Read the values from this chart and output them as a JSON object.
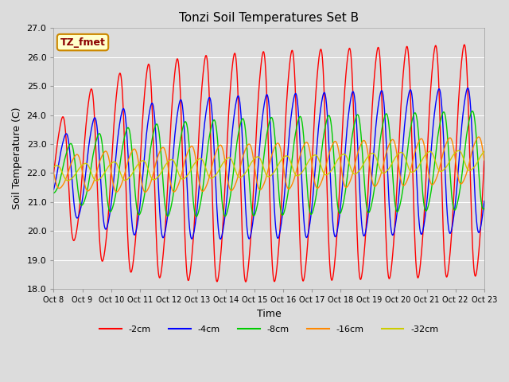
{
  "title": "Tonzi Soil Temperatures Set B",
  "xlabel": "Time",
  "ylabel": "Soil Temperature (C)",
  "ylim": [
    18.0,
    27.0
  ],
  "yticks": [
    18.0,
    19.0,
    20.0,
    21.0,
    22.0,
    23.0,
    24.0,
    25.0,
    26.0,
    27.0
  ],
  "xtick_labels": [
    "Oct 8",
    "Oct 9",
    "Oct 10",
    "Oct 11",
    "Oct 12",
    "Oct 13",
    "Oct 14",
    "Oct 15",
    "Oct 16",
    "Oct 17",
    "Oct 18",
    "Oct 19",
    "Oct 20",
    "Oct 21",
    "Oct 22",
    "Oct 23"
  ],
  "colors": {
    "-2cm": "#FF0000",
    "-4cm": "#0000FF",
    "-8cm": "#00CC00",
    "-16cm": "#FF8800",
    "-32cm": "#CCCC00"
  },
  "series_labels": [
    "-2cm",
    "-4cm",
    "-8cm",
    "-16cm",
    "-32cm"
  ],
  "bg_color": "#DCDCDC",
  "annotation_text": "TZ_fmet",
  "annotation_bg": "#FFFFCC",
  "annotation_border": "#CC8800",
  "n_days": 15,
  "mean_temp": 22.0,
  "params": {
    "-2cm": {
      "amp_base": 1.5,
      "amp_growth": 2.5,
      "phase": 0.0,
      "trend": 0.0
    },
    "-4cm": {
      "amp_base": 1.0,
      "amp_growth": 1.5,
      "phase": 0.12,
      "trend": 0.0
    },
    "-8cm": {
      "amp_base": 0.7,
      "amp_growth": 1.0,
      "phase": 0.28,
      "trend": 0.0
    },
    "-16cm": {
      "amp_base": 0.5,
      "amp_growth": 0.3,
      "phase": 0.5,
      "trend": 0.0
    },
    "-32cm": {
      "amp_base": 0.25,
      "amp_growth": 0.1,
      "phase": 0.8,
      "trend": 0.0
    }
  },
  "grid_color": "#FFFFFF",
  "sharpness": 2.5
}
